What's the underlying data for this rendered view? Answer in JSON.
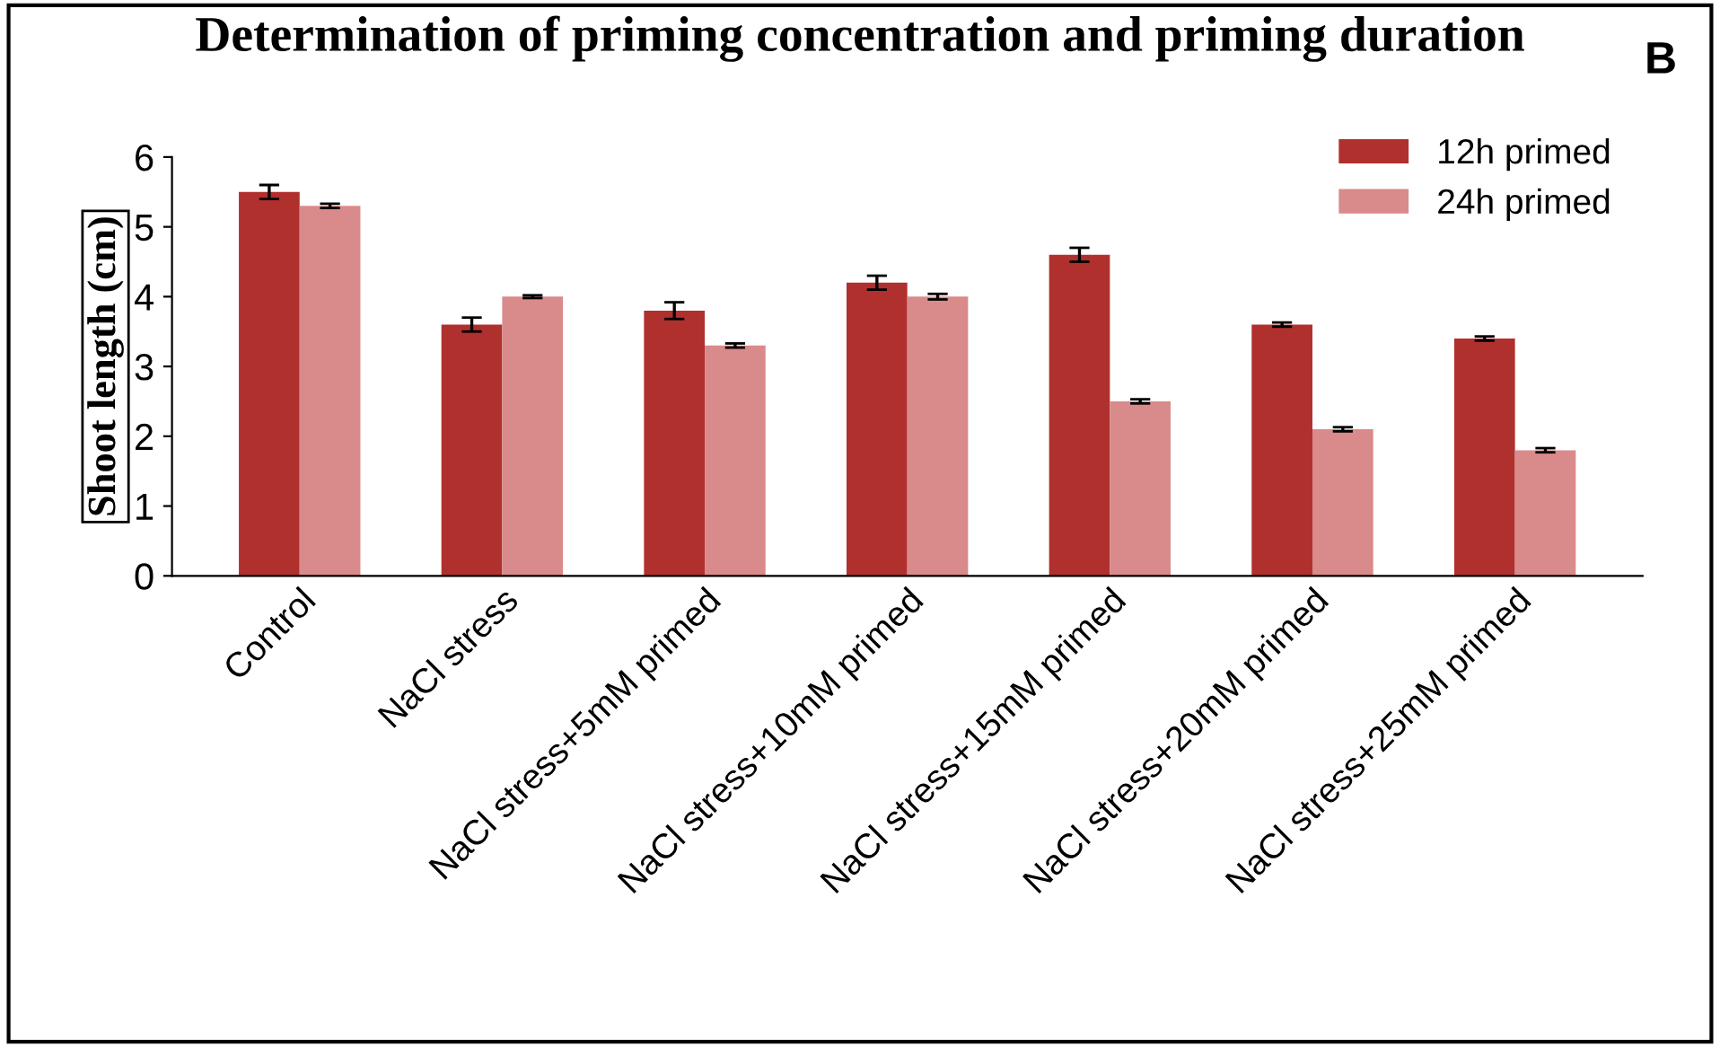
{
  "chart_data": {
    "type": "bar",
    "title": "Determination of priming concentration and priming duration",
    "ylabel": "Shoot length (cm)",
    "categories": [
      "Control",
      "NaCl stress",
      "NaCl stress+5mM primed",
      "NaCl stress+10mM primed",
      "NaCl stress+15mM primed",
      "NaCl stress+20mM primed",
      "NaCl stress+25mM primed"
    ],
    "series": [
      {
        "name": "12h primed",
        "color": "#b0302e",
        "values": [
          5.5,
          3.6,
          3.8,
          4.2,
          4.6,
          3.6,
          3.4
        ],
        "errors": [
          0.1,
          0.1,
          0.12,
          0.1,
          0.1,
          0.03,
          0.03
        ]
      },
      {
        "name": "24h primed",
        "color": "#d98a8a",
        "values": [
          5.3,
          4.0,
          3.3,
          4.0,
          2.5,
          2.1,
          1.8
        ],
        "errors": [
          0.03,
          0.02,
          0.03,
          0.04,
          0.03,
          0.03,
          0.03
        ]
      }
    ],
    "ylim": [
      0,
      6
    ],
    "yticks": [
      0,
      1,
      2,
      3,
      4,
      5,
      6
    ],
    "grid": false,
    "legend": "top right",
    "annotations": [
      "B"
    ]
  }
}
